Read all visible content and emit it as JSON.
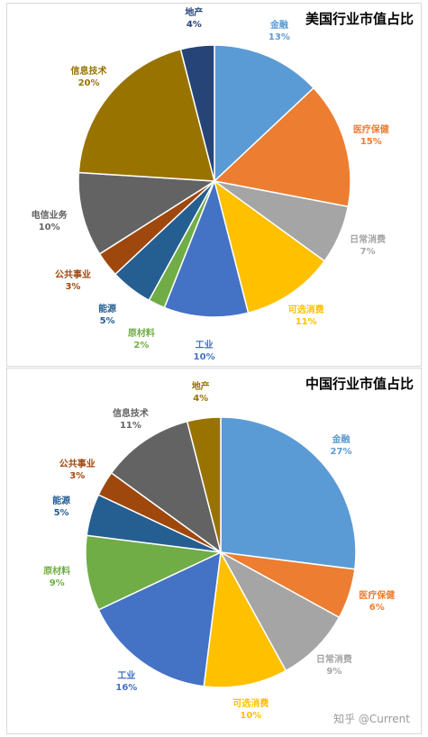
{
  "chart_data": [
    {
      "type": "pie",
      "title": "美国行业市值占比",
      "slices": [
        {
          "label": "金融",
          "value": 13,
          "value_label": "13%",
          "color": "#5b9bd5"
        },
        {
          "label": "医疗保健",
          "value": 15,
          "value_label": "15%",
          "color": "#ed7d31"
        },
        {
          "label": "日常消费",
          "value": 7,
          "value_label": "7%",
          "color": "#a5a5a5"
        },
        {
          "label": "可选消费",
          "value": 11,
          "value_label": "11%",
          "color": "#ffc000"
        },
        {
          "label": "工业",
          "value": 10,
          "value_label": "10%",
          "color": "#4472c4"
        },
        {
          "label": "原材料",
          "value": 2,
          "value_label": "2%",
          "color": "#70ad47"
        },
        {
          "label": "能源",
          "value": 5,
          "value_label": "5%",
          "color": "#255e91"
        },
        {
          "label": "公共事业",
          "value": 3,
          "value_label": "3%",
          "color": "#9e480e"
        },
        {
          "label": "电信业务",
          "value": 10,
          "value_label": "10%",
          "color": "#636363"
        },
        {
          "label": "信息技术",
          "value": 20,
          "value_label": "20%",
          "color": "#997300"
        },
        {
          "label": "地产",
          "value": 4,
          "value_label": "4%",
          "color": "#264478"
        }
      ]
    },
    {
      "type": "pie",
      "title": "中国行业市值占比",
      "slices": [
        {
          "label": "金融",
          "value": 27,
          "value_label": "27%",
          "color": "#5b9bd5"
        },
        {
          "label": "医疗保健",
          "value": 6,
          "value_label": "6%",
          "color": "#ed7d31"
        },
        {
          "label": "日常消费",
          "value": 9,
          "value_label": "9%",
          "color": "#a5a5a5"
        },
        {
          "label": "可选消费",
          "value": 10,
          "value_label": "10%",
          "color": "#ffc000"
        },
        {
          "label": "工业",
          "value": 16,
          "value_label": "16%",
          "color": "#4472c4"
        },
        {
          "label": "原材料",
          "value": 9,
          "value_label": "9%",
          "color": "#70ad47"
        },
        {
          "label": "能源",
          "value": 5,
          "value_label": "5%",
          "color": "#255e91"
        },
        {
          "label": "公共事业",
          "value": 3,
          "value_label": "3%",
          "color": "#9e480e"
        },
        {
          "label": "信息技术",
          "value": 11,
          "value_label": "11%",
          "color": "#636363"
        },
        {
          "label": "地产",
          "value": 4,
          "value_label": "4%",
          "color": "#997300"
        }
      ]
    }
  ],
  "watermark": "知乎 @Current"
}
